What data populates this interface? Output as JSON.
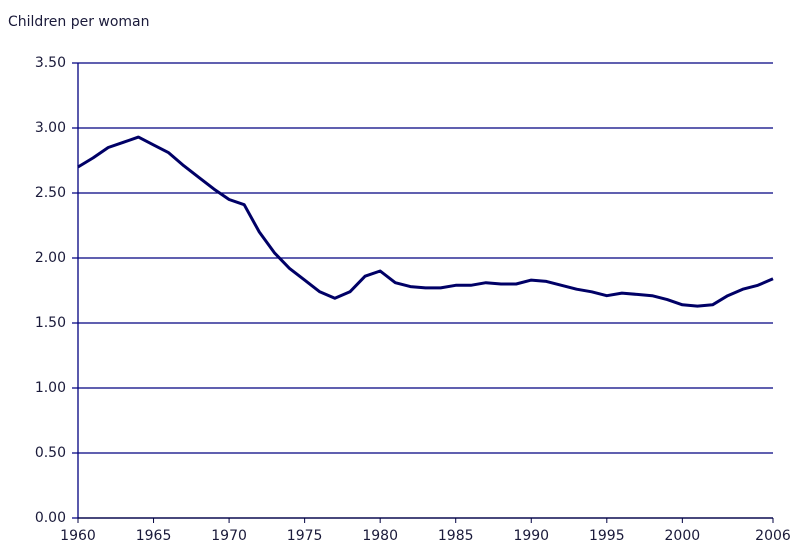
{
  "chart_data": {
    "type": "line",
    "ylabel": "Children per woman",
    "x": [
      1960,
      1961,
      1962,
      1963,
      1964,
      1965,
      1966,
      1967,
      1968,
      1969,
      1970,
      1971,
      1972,
      1973,
      1974,
      1975,
      1976,
      1977,
      1978,
      1979,
      1980,
      1981,
      1982,
      1983,
      1984,
      1985,
      1986,
      1987,
      1988,
      1989,
      1990,
      1991,
      1992,
      1993,
      1994,
      1995,
      1996,
      1997,
      1998,
      1999,
      2000,
      2001,
      2002,
      2003,
      2004,
      2005,
      2006
    ],
    "values": [
      2.7,
      2.77,
      2.85,
      2.89,
      2.93,
      2.87,
      2.81,
      2.71,
      2.62,
      2.53,
      2.45,
      2.41,
      2.2,
      2.04,
      1.92,
      1.83,
      1.74,
      1.69,
      1.74,
      1.86,
      1.9,
      1.81,
      1.78,
      1.77,
      1.77,
      1.79,
      1.79,
      1.81,
      1.8,
      1.8,
      1.83,
      1.82,
      1.79,
      1.76,
      1.74,
      1.71,
      1.73,
      1.72,
      1.71,
      1.68,
      1.64,
      1.63,
      1.64,
      1.71,
      1.76,
      1.79,
      1.84
    ],
    "color": "#000066",
    "xlim": [
      1960,
      2006
    ],
    "xticks": [
      1960,
      1965,
      1970,
      1975,
      1980,
      1985,
      1990,
      1995,
      2000,
      2006
    ],
    "ylim": [
      0,
      3.5
    ],
    "yticks": [
      {
        "value": 0,
        "label": "0.00"
      },
      {
        "value": 0.5,
        "label": "0.50"
      },
      {
        "value": 1,
        "label": "1.00"
      },
      {
        "value": 1.5,
        "label": "1.50"
      },
      {
        "value": 2,
        "label": "2.00"
      },
      {
        "value": 2.5,
        "label": "2.50"
      },
      {
        "value": 3,
        "label": "3.00"
      },
      {
        "value": 3.5,
        "label": "3.50"
      }
    ],
    "grid": true
  }
}
